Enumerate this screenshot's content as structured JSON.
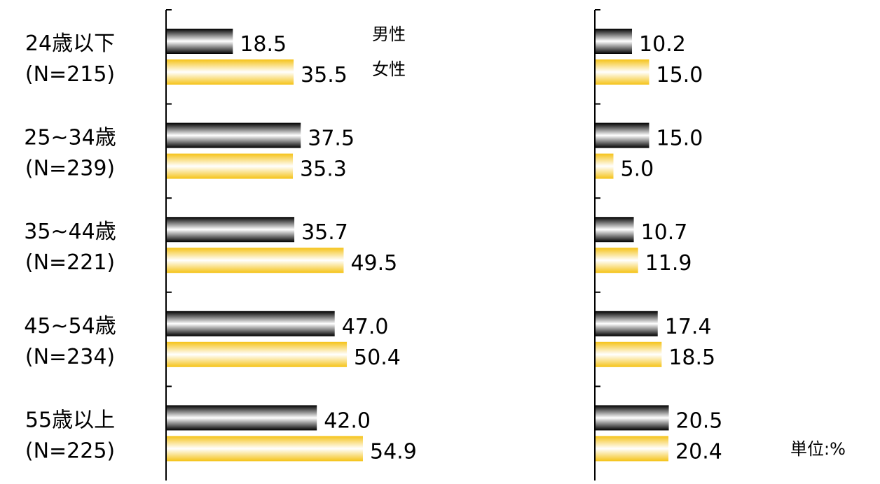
{
  "chart_data": {
    "type": "bar",
    "orientation": "horizontal",
    "categories": [
      {
        "label": "24歳以下",
        "n": "(N=215)"
      },
      {
        "label": "25~34歳",
        "n": "(N=239)"
      },
      {
        "label": "35~44歳",
        "n": "(N=221)"
      },
      {
        "label": "45~54歳",
        "n": "(N=234)"
      },
      {
        "label": "55歳以上",
        "n": "(N=225)"
      }
    ],
    "legend": [
      "男性",
      "女性"
    ],
    "unit": "単位:%",
    "panels": [
      {
        "series": [
          {
            "legend_index": 0,
            "values": [
              18.5,
              37.5,
              35.7,
              47.0,
              42.0
            ],
            "labels": [
              "18.5",
              "37.5",
              "35.7",
              "47.0",
              "42.0"
            ],
            "color": "#000000"
          },
          {
            "legend_index": 1,
            "values": [
              35.5,
              35.3,
              49.5,
              50.4,
              54.9
            ],
            "labels": [
              "35.5",
              "35.3",
              "49.5",
              "50.4",
              "54.9"
            ],
            "color": "#f5c318"
          }
        ]
      },
      {
        "series": [
          {
            "legend_index": 0,
            "values": [
              10.2,
              15.0,
              10.7,
              17.4,
              20.5
            ],
            "labels": [
              "10.2",
              "15.0",
              "10.7",
              "17.4",
              "20.5"
            ],
            "color": "#000000"
          },
          {
            "legend_index": 1,
            "values": [
              15.0,
              5.0,
              11.9,
              18.5,
              20.4
            ],
            "labels": [
              "15.0",
              "5.0",
              "11.9",
              "18.5",
              "20.4"
            ],
            "color": "#f5c318"
          }
        ]
      }
    ]
  }
}
